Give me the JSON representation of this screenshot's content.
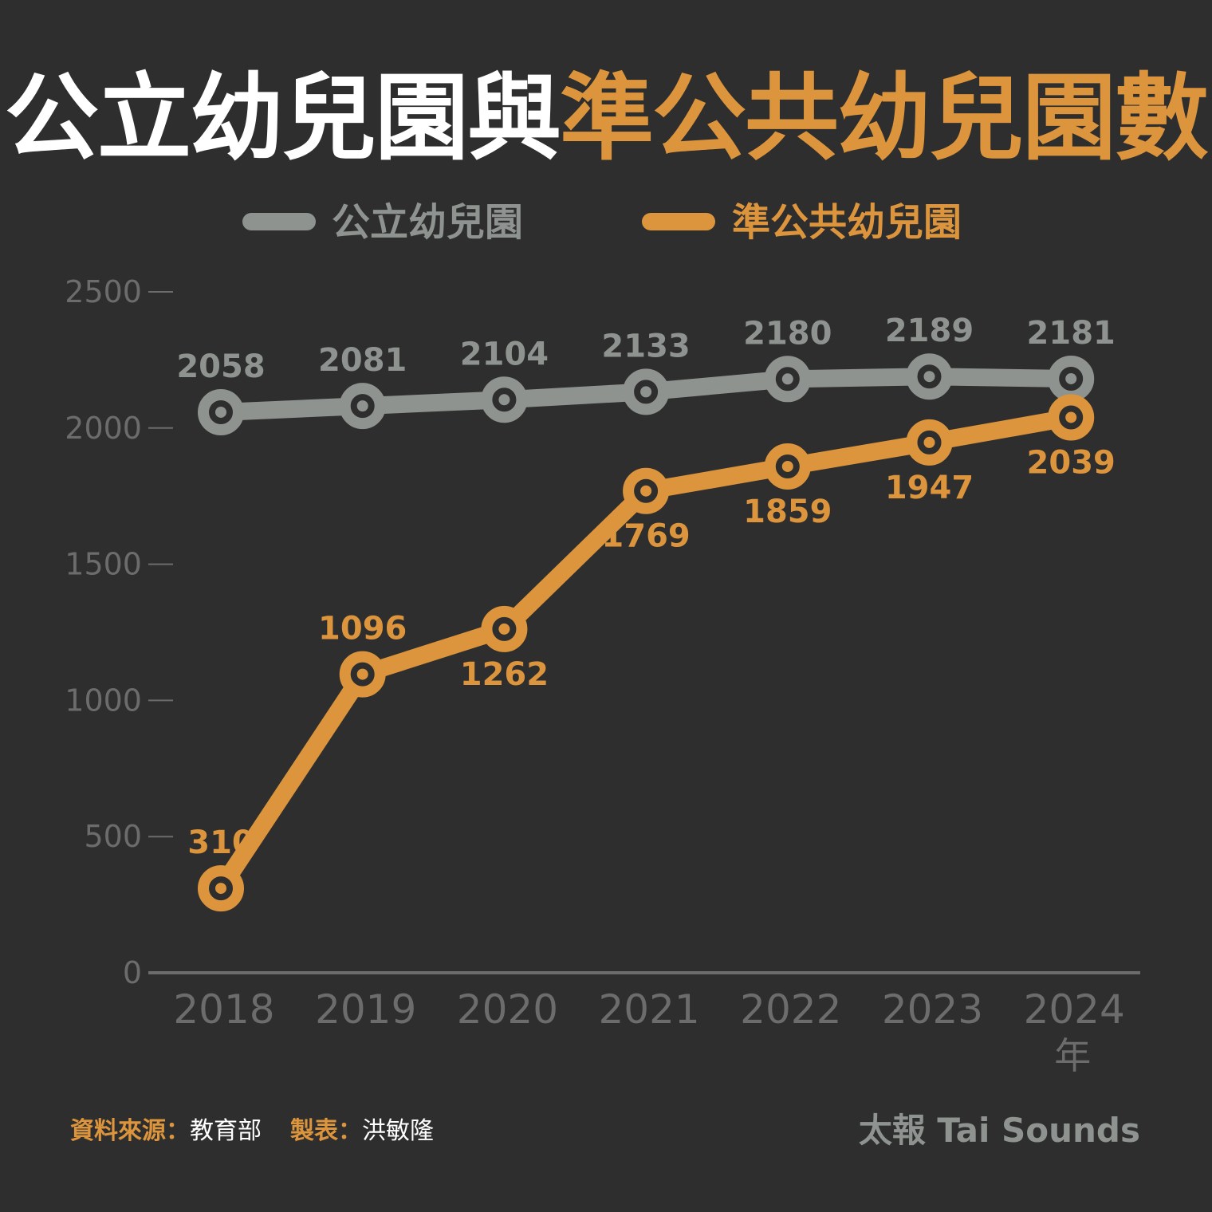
{
  "title": {
    "part1": "公立幼兒園與",
    "part2": "準公共幼兒園數"
  },
  "footer": {
    "source_label": "資料來源：",
    "source_value": "教育部",
    "maker_label": "製表：",
    "maker_value": "洪敏隆",
    "brand": "太報 Tai Sounds"
  },
  "colors": {
    "background": "#2e2e2e",
    "public": "#8e9390",
    "quasi": "#dc953c",
    "axis": "#6c6c6c"
  },
  "chart_data": {
    "type": "line",
    "x": [
      "2018",
      "2019",
      "2020",
      "2021",
      "2022",
      "2023",
      "2024"
    ],
    "x_unit": "年",
    "ylim": [
      0,
      2500
    ],
    "yticks": [
      0,
      500,
      1000,
      1500,
      2000,
      2500
    ],
    "grid": false,
    "legend_position": "top",
    "series": [
      {
        "name": "公立幼兒園",
        "color": "#8e9390",
        "values": [
          2058,
          2081,
          2104,
          2133,
          2180,
          2189,
          2181
        ],
        "label_side": "above"
      },
      {
        "name": "準公共幼兒園",
        "color": "#dc953c",
        "values": [
          310,
          1096,
          1262,
          1769,
          1859,
          1947,
          2039
        ],
        "label_side": "mixed"
      }
    ]
  }
}
